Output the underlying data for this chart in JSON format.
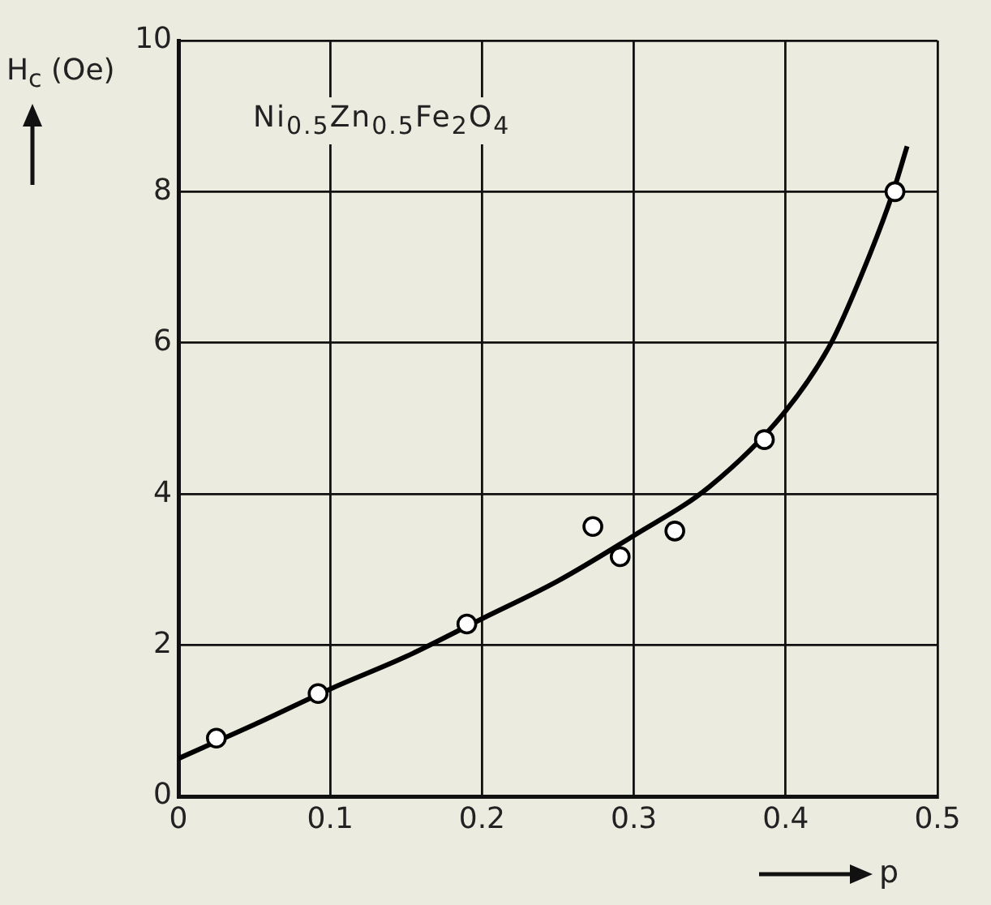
{
  "chart_data": {
    "type": "scatter",
    "xlabel": "p",
    "ylabel": "H$_{c}$ (Oe)",
    "annotations": [
      "Ni$_{0.5}$Zn$_{0.5}$Fe$_{2}$O$_{4}$"
    ],
    "xlim": [
      0,
      0.5
    ],
    "xticks": [
      0,
      0.1,
      0.2,
      0.3,
      0.4,
      0.5
    ],
    "ylim": [
      0,
      10
    ],
    "yticks": [
      0,
      2,
      4,
      6,
      8,
      10
    ],
    "grid": true,
    "legend": false,
    "series": [
      {
        "type": "scatter",
        "marker": "circle",
        "color": "#000000",
        "x": [
          0.025,
          0.092,
          0.19,
          0.273,
          0.291,
          0.327,
          0.386,
          0.472
        ],
        "values": [
          0.77,
          1.36,
          2.28,
          3.57,
          3.17,
          3.51,
          4.72,
          8.0
        ]
      },
      {
        "type": "line",
        "marker": "none",
        "line_style": "solid",
        "color": "#000000",
        "x": [
          0,
          0.05,
          0.1,
          0.15,
          0.2,
          0.25,
          0.3,
          0.35,
          0.4,
          0.43,
          0.45,
          0.47,
          0.48
        ],
        "values": [
          0.5,
          0.95,
          1.42,
          1.85,
          2.35,
          2.85,
          3.45,
          4.1,
          5.1,
          6.0,
          6.9,
          7.95,
          8.6
        ]
      }
    ]
  }
}
